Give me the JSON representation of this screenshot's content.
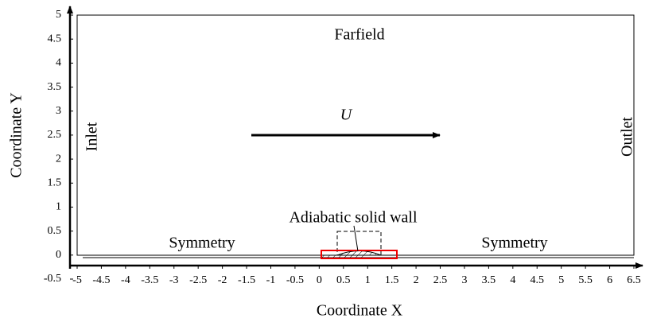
{
  "labels": {
    "farfield": "Farfield",
    "inlet": "Inlet",
    "outlet": "Outlet",
    "velocity": "U",
    "symmetry_left": "Symmetry",
    "symmetry_right": "Symmetry",
    "wall": "Adiabatic solid wall"
  },
  "axes": {
    "x_label": "Coordinate X",
    "y_label": "Coordinate Y",
    "xlim": [
      -5,
      6.5
    ],
    "ylim": [
      -0.5,
      5
    ],
    "xticks": [
      -5,
      -4.5,
      -4,
      -3.5,
      -3,
      -2.5,
      -2,
      -1.5,
      -1,
      -0.5,
      0,
      0.5,
      1,
      1.5,
      2,
      2.5,
      3,
      3.5,
      4,
      4.5,
      5,
      5.5,
      6,
      6.5
    ],
    "yticks": [
      -0.5,
      0,
      0.5,
      1,
      1.5,
      2,
      2.5,
      3,
      3.5,
      4,
      4.5,
      5
    ]
  }
}
